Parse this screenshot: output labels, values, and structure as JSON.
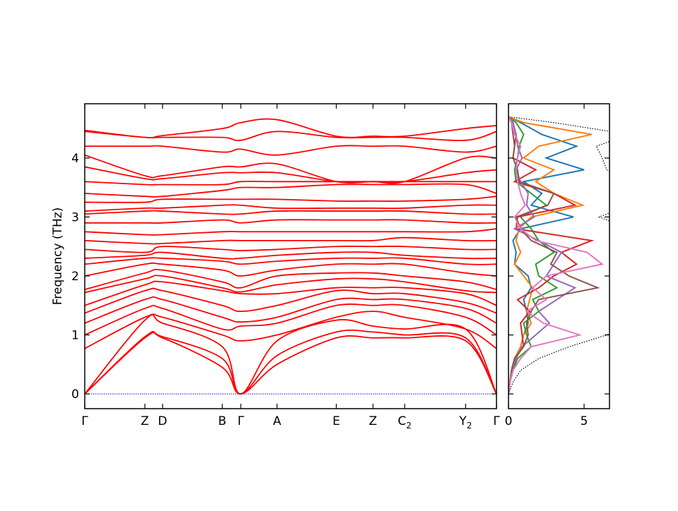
{
  "chart_data": [
    {
      "type": "line",
      "ylabel": "Frequency (THz)",
      "ylim": [
        -0.25,
        4.92
      ],
      "yticks": [
        0,
        1,
        2,
        3,
        4
      ],
      "grid": false,
      "kpoint_labels": [
        "Γ",
        "Z",
        "D",
        "B",
        "Γ",
        "A",
        "E",
        "Z",
        "C",
        "Y",
        "Γ"
      ],
      "kpoint_subscripts": [
        "",
        "",
        "",
        "",
        "",
        "",
        "",
        "",
        "2",
        "2",
        ""
      ],
      "kpoint_positions": [
        0,
        0.146,
        0.189,
        0.334,
        0.379,
        0.467,
        0.611,
        0.7,
        0.777,
        0.925,
        1.0
      ],
      "band_color": "#ff0000",
      "zero_line_color": "#0000ff",
      "bands": [
        [
          0,
          0.95,
          0.95,
          0.45,
          0,
          0.5,
          0.95,
          0.95,
          0.95,
          0.9,
          0
        ],
        [
          0,
          0.97,
          0.97,
          0.6,
          0,
          0.65,
          1.05,
          1.05,
          1.0,
          0.95,
          0
        ],
        [
          0,
          1.25,
          1.2,
          0.8,
          0,
          0.9,
          1.25,
          1.15,
          1.1,
          1.1,
          0
        ],
        [
          0.77,
          1.3,
          1.3,
          1.0,
          0.9,
          1.0,
          1.3,
          1.4,
          1.3,
          1.1,
          0.77
        ],
        [
          1.0,
          1.45,
          1.45,
          1.1,
          1.15,
          1.2,
          1.5,
          1.5,
          1.5,
          1.3,
          1.0
        ],
        [
          1.2,
          1.6,
          1.6,
          1.3,
          1.22,
          1.3,
          1.6,
          1.6,
          1.6,
          1.45,
          1.2
        ],
        [
          1.37,
          1.75,
          1.75,
          1.5,
          1.4,
          1.5,
          1.75,
          1.7,
          1.7,
          1.55,
          1.37
        ],
        [
          1.5,
          1.85,
          1.9,
          1.75,
          1.7,
          1.7,
          1.8,
          1.8,
          1.8,
          1.7,
          1.5
        ],
        [
          1.72,
          1.95,
          2.0,
          1.8,
          1.73,
          1.85,
          1.95,
          1.95,
          1.9,
          1.75,
          1.72
        ],
        [
          1.77,
          2.05,
          2.1,
          1.9,
          1.8,
          2.0,
          2.05,
          2.05,
          2.0,
          1.9,
          1.77
        ],
        [
          2.0,
          2.2,
          2.2,
          2.1,
          2.0,
          2.1,
          2.2,
          2.2,
          2.2,
          2.05,
          2.0
        ],
        [
          2.2,
          2.3,
          2.3,
          2.25,
          2.2,
          2.25,
          2.3,
          2.3,
          2.3,
          2.2,
          2.2
        ],
        [
          2.3,
          2.35,
          2.4,
          2.3,
          2.3,
          2.35,
          2.4,
          2.4,
          2.35,
          2.3,
          2.3
        ],
        [
          2.45,
          2.4,
          2.5,
          2.45,
          2.43,
          2.45,
          2.5,
          2.5,
          2.5,
          2.45,
          2.45
        ],
        [
          2.6,
          2.55,
          2.55,
          2.6,
          2.6,
          2.6,
          2.6,
          2.6,
          2.65,
          2.6,
          2.6
        ],
        [
          2.75,
          2.7,
          2.7,
          2.75,
          2.75,
          2.75,
          2.75,
          2.75,
          2.75,
          2.75,
          2.8
        ],
        [
          2.9,
          2.9,
          2.9,
          2.95,
          2.9,
          2.95,
          2.95,
          2.95,
          2.95,
          2.9,
          2.9
        ],
        [
          3.05,
          3.1,
          3.1,
          3.05,
          3.05,
          3.1,
          3.1,
          3.1,
          3.1,
          3.05,
          3.05
        ],
        [
          3.1,
          3.15,
          3.15,
          3.2,
          3.2,
          3.15,
          3.15,
          3.15,
          3.15,
          3.2,
          3.2
        ],
        [
          3.25,
          3.25,
          3.3,
          3.3,
          3.3,
          3.3,
          3.27,
          3.27,
          3.27,
          3.3,
          3.35
        ],
        [
          3.4,
          3.35,
          3.35,
          3.45,
          3.5,
          3.5,
          3.55,
          3.55,
          3.55,
          3.55,
          3.4
        ],
        [
          3.6,
          3.55,
          3.55,
          3.55,
          3.6,
          3.6,
          3.6,
          3.6,
          3.6,
          3.6,
          3.6
        ],
        [
          3.85,
          3.65,
          3.65,
          3.75,
          3.75,
          3.75,
          3.6,
          3.6,
          3.6,
          3.75,
          3.8
        ],
        [
          4.05,
          3.7,
          3.7,
          3.85,
          3.85,
          3.9,
          3.6,
          3.6,
          3.6,
          4.0,
          4.0
        ],
        [
          4.2,
          4.2,
          4.2,
          4.1,
          4.15,
          4.05,
          4.2,
          4.2,
          4.2,
          4.1,
          4.2
        ],
        [
          4.45,
          4.35,
          4.35,
          4.35,
          4.3,
          4.45,
          4.35,
          4.35,
          4.35,
          4.3,
          4.45
        ],
        [
          4.47,
          4.35,
          4.38,
          4.5,
          4.6,
          4.65,
          4.37,
          4.37,
          4.37,
          4.5,
          4.55
        ]
      ]
    },
    {
      "type": "line",
      "orientation": "horizontal-dos",
      "xlim": [
        0,
        6.68
      ],
      "xticks": [
        0,
        5
      ],
      "ylim": [
        -0.25,
        4.92
      ],
      "freqs": [
        0,
        0.2,
        0.4,
        0.6,
        0.8,
        1.0,
        1.2,
        1.4,
        1.6,
        1.8,
        2.0,
        2.2,
        2.4,
        2.6,
        2.8,
        3.0,
        3.2,
        3.4,
        3.6,
        3.8,
        4.0,
        4.2,
        4.4,
        4.6,
        4.7
      ],
      "total": {
        "color": "#000000",
        "style": "dotted",
        "values": [
          0,
          0.3,
          0.8,
          2.0,
          4.0,
          6.5,
          8,
          8,
          8,
          8,
          8,
          8,
          8,
          8,
          8,
          6.0,
          8,
          8,
          8,
          6.5,
          6.2,
          5.8,
          8,
          3.0,
          0
        ]
      },
      "series": [
        {
          "color": "#1f77b4",
          "values": [
            0,
            0.1,
            0.3,
            0.5,
            0.8,
            1.0,
            1.3,
            1.2,
            1.0,
            1.5,
            1.3,
            0.4,
            0.5,
            0.3,
            0.8,
            4.3,
            1.5,
            2.2,
            1.0,
            5.0,
            2.5,
            4.5,
            2.2,
            0.8,
            0
          ]
        },
        {
          "color": "#ff7f0e",
          "values": [
            0,
            0.1,
            0.2,
            0.4,
            0.8,
            1.0,
            1.5,
            1.2,
            1.4,
            1.6,
            1.0,
            0.4,
            0.8,
            0.5,
            0.7,
            1.5,
            4.9,
            3.0,
            1.8,
            3.0,
            1.0,
            2.0,
            5.5,
            1.0,
            0
          ]
        },
        {
          "color": "#2ca02c",
          "values": [
            0,
            0.1,
            0.3,
            0.6,
            1.5,
            1.2,
            1.0,
            2.0,
            1.6,
            3.2,
            2.0,
            1.8,
            3.0,
            2.0,
            1.5,
            0.8,
            2.5,
            1.5,
            0.5,
            0.4,
            0.6,
            0.7,
            1.0,
            0.5,
            0
          ]
        },
        {
          "color": "#d62728",
          "values": [
            0,
            0.1,
            0.2,
            0.4,
            1.0,
            0.9,
            0.8,
            1.4,
            0.6,
            2.0,
            3.0,
            4.5,
            3.5,
            5.5,
            0.5,
            0.6,
            4.4,
            3.0,
            0.4,
            1.8,
            0.3,
            0.4,
            0.5,
            0.3,
            0
          ]
        },
        {
          "color": "#9467bd",
          "values": [
            0,
            0.1,
            0.2,
            0.5,
            0.9,
            1.8,
            2.7,
            2.0,
            3.2,
            4.4,
            2.5,
            3.0,
            3.5,
            2.0,
            0.4,
            1.7,
            1.2,
            1.3,
            0.8,
            0.5,
            0.9,
            0.6,
            0.5,
            0.3,
            0
          ]
        },
        {
          "color": "#8c564b",
          "values": [
            0,
            0.1,
            0.2,
            0.4,
            1.0,
            1.3,
            1.2,
            1.5,
            2.0,
            5.9,
            4.0,
            2.8,
            3.2,
            1.5,
            0.8,
            0.5,
            2.6,
            3.0,
            0.7,
            0.6,
            0.3,
            0.4,
            0.3,
            0.2,
            0
          ]
        },
        {
          "color": "#e377c2",
          "values": [
            0,
            0.1,
            0.3,
            0.8,
            1.5,
            4.7,
            2.3,
            1.2,
            2.5,
            1.6,
            2.5,
            6.2,
            5.2,
            1.8,
            0.8,
            0.4,
            1.1,
            0.8,
            0.6,
            0.5,
            0.6,
            0.8,
            0.4,
            0.2,
            0
          ]
        }
      ]
    }
  ]
}
